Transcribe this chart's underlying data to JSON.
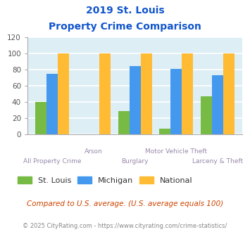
{
  "title_line1": "2019 St. Louis",
  "title_line2": "Property Crime Comparison",
  "categories": [
    "All Property Crime",
    "Arson",
    "Burglary",
    "Motor Vehicle Theft",
    "Larceny & Theft"
  ],
  "series": {
    "St. Louis": [
      40,
      0,
      29,
      7,
      47
    ],
    "Michigan": [
      75,
      0,
      84,
      81,
      73
    ],
    "National": [
      100,
      100,
      100,
      100,
      100
    ]
  },
  "colors": {
    "St. Louis": "#77bb44",
    "Michigan": "#4499ee",
    "National": "#ffbb33"
  },
  "ylim": [
    0,
    120
  ],
  "yticks": [
    0,
    20,
    40,
    60,
    80,
    100,
    120
  ],
  "bg_color": "#ddeef5",
  "grid_color": "#ffffff",
  "footnote": "Compared to U.S. average. (U.S. average equals 100)",
  "copyright": "© 2025 CityRating.com - https://www.cityrating.com/crime-statistics/",
  "title_color": "#1155cc",
  "xticklabel_color": "#9988aa",
  "footnote_color": "#cc4400",
  "copyright_color": "#888888",
  "legend_labels": [
    "St. Louis",
    "Michigan",
    "National"
  ],
  "xtick_labels_row1": [
    "",
    "Arson",
    "",
    "Motor Vehicle Theft",
    ""
  ],
  "xtick_labels_row2": [
    "All Property Crime",
    "",
    "Burglary",
    "",
    "Larceny & Theft"
  ]
}
